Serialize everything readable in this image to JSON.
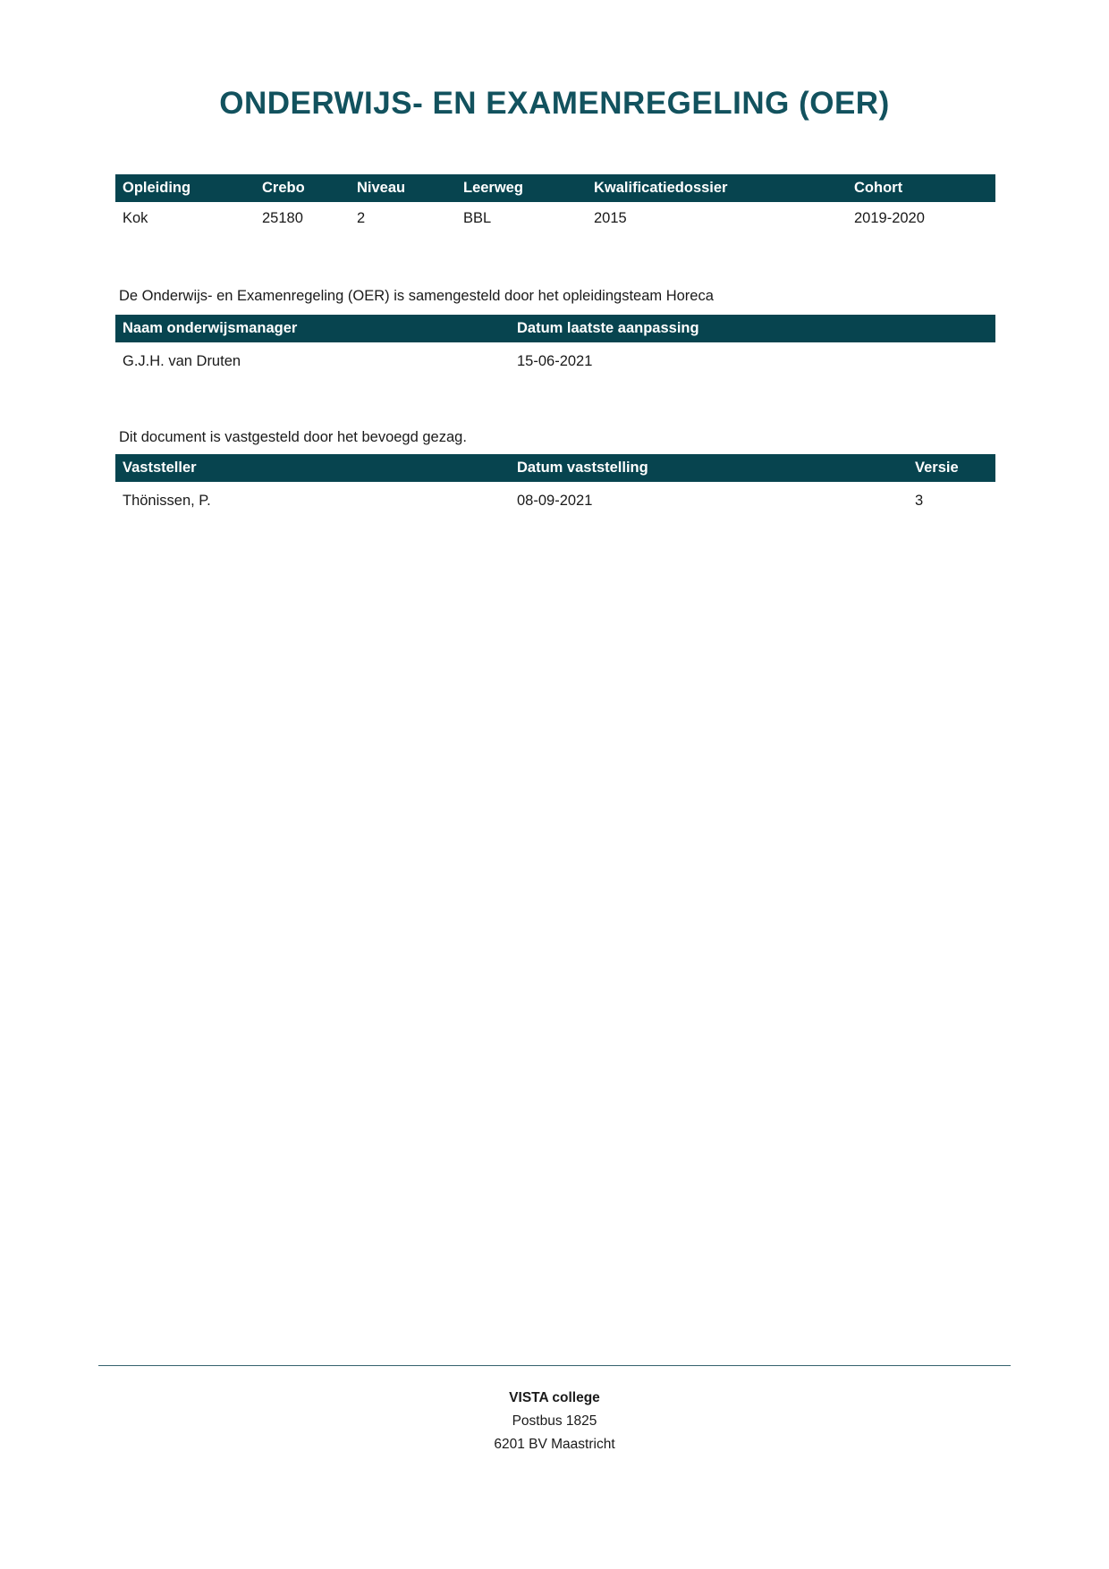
{
  "page": {
    "title": "ONDERWIJS- EN EXAMENREGELING (OER)"
  },
  "colors": {
    "table_header_bg": "#07444f",
    "title_text": "#12525e",
    "footer_rule": "#35626d",
    "body_text": "#1a1a1a"
  },
  "program_table": {
    "headers": [
      "Opleiding",
      "Crebo",
      "Niveau",
      "Leerweg",
      "Kwalificatiedossier",
      "Cohort"
    ],
    "row": [
      "Kok",
      "25180",
      "2",
      "BBL",
      "2015",
      "2019-2020"
    ]
  },
  "composition": {
    "intro": "De Onderwijs- en Examenregeling (OER) is samengesteld door het opleidingsteam Horeca",
    "headers": [
      "Naam onderwijsmanager",
      "Datum laatste aanpassing"
    ],
    "row": [
      "G.J.H. van Druten",
      "15-06-2021"
    ]
  },
  "approval": {
    "intro": "Dit document is vastgesteld door het bevoegd gezag.",
    "headers": [
      "Vaststeller",
      "Datum vaststelling",
      "Versie"
    ],
    "row": [
      "Thönissen, P.",
      "08-09-2021",
      "3"
    ]
  },
  "footer": {
    "org": "VISTA college",
    "address_line1": "Postbus 1825",
    "address_line2": "6201 BV Maastricht"
  }
}
